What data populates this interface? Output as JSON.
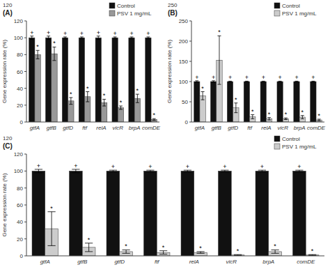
{
  "chart_data": [
    {
      "type": "bar",
      "title": "(A)",
      "annotations": [
        "120"
      ],
      "categories": [
        "gtfA",
        "gtfB",
        "gtfD",
        "ftf",
        "relA",
        "vicR",
        "brpA",
        "comDE"
      ],
      "y_label": "Gene expression rate (%)",
      "ylim": [
        0,
        120
      ],
      "yticks": [
        0,
        20,
        40,
        60,
        80,
        100,
        120
      ],
      "grid": false,
      "legend": "upper right",
      "series": [
        {
          "name": "Control",
          "color": "#111111",
          "values": [
            100,
            100,
            100,
            100,
            100,
            100,
            100,
            100
          ],
          "errors": [
            2,
            2,
            1,
            1,
            2,
            1,
            1,
            1
          ],
          "annotation": "+"
        },
        {
          "name": "PSV 1 mg/mL",
          "color": "#999999",
          "values": [
            80,
            81,
            25,
            30,
            23,
            17,
            28,
            3
          ],
          "errors": [
            5,
            8,
            4,
            6,
            4,
            2,
            5,
            1
          ],
          "annotation": "*"
        }
      ]
    },
    {
      "type": "bar",
      "title": "(B)",
      "annotations": [
        "250"
      ],
      "categories": [
        "gtfA",
        "gtfB",
        "gtfD",
        "ftf",
        "relA",
        "vicR",
        "brpA",
        "comDE"
      ],
      "y_label": "Gene expression rate (%)",
      "ylim": [
        0,
        250
      ],
      "yticks": [
        0,
        50,
        100,
        150,
        200,
        250
      ],
      "grid": false,
      "legend": "upper right",
      "series": [
        {
          "name": "Control",
          "color": "#111111",
          "values": [
            100,
            100,
            100,
            100,
            100,
            100,
            100,
            100
          ],
          "errors": [
            2,
            2,
            1,
            1,
            1,
            1,
            1,
            1
          ],
          "annotation": "+"
        },
        {
          "name": "PSV 1 mg/mL",
          "color": "#cccccc",
          "values": [
            65,
            153,
            35,
            13,
            8,
            8,
            12,
            5
          ],
          "errors": [
            10,
            60,
            12,
            5,
            3,
            2,
            4,
            2
          ],
          "annotation": "*"
        }
      ]
    },
    {
      "type": "bar",
      "title": "(C)",
      "annotations": [
        "120"
      ],
      "categories": [
        "gtfA",
        "gtfB",
        "gtfD",
        "ftf",
        "relA",
        "vicR",
        "brpA",
        "comDE"
      ],
      "y_label": "Gene expression rate (%)",
      "ylim": [
        0,
        120
      ],
      "yticks": [
        0,
        20,
        40,
        60,
        80,
        100,
        120
      ],
      "grid": false,
      "legend": "upper right",
      "series": [
        {
          "name": "Control",
          "color": "#111111",
          "values": [
            100,
            100,
            100,
            100,
            100,
            100,
            100,
            100
          ],
          "errors": [
            2,
            2,
            1,
            1,
            1,
            1,
            1,
            1
          ],
          "annotation": "+"
        },
        {
          "name": "PSV 1 mg/mL",
          "color": "#cccccc",
          "values": [
            32,
            10,
            5,
            4,
            4,
            1,
            5,
            1
          ],
          "errors": [
            20,
            5,
            2,
            2,
            1,
            0.5,
            2,
            0.5
          ],
          "annotation": "*"
        }
      ]
    }
  ]
}
